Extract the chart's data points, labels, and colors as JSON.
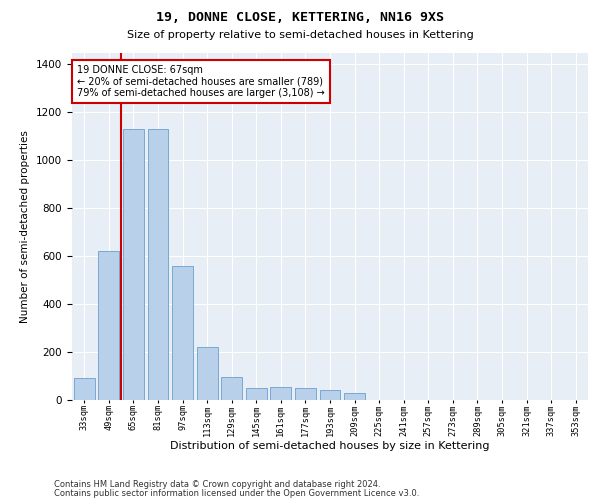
{
  "title1": "19, DONNE CLOSE, KETTERING, NN16 9XS",
  "title2": "Size of property relative to semi-detached houses in Kettering",
  "xlabel": "Distribution of semi-detached houses by size in Kettering",
  "ylabel": "Number of semi-detached properties",
  "property_label": "19 DONNE CLOSE: 67sqm",
  "pct_smaller": 20,
  "count_smaller": 789,
  "pct_larger": 79,
  "count_larger": 3108,
  "bin_labels": [
    "33sqm",
    "49sqm",
    "65sqm",
    "81sqm",
    "97sqm",
    "113sqm",
    "129sqm",
    "145sqm",
    "161sqm",
    "177sqm",
    "193sqm",
    "209sqm",
    "225sqm",
    "241sqm",
    "257sqm",
    "273sqm",
    "289sqm",
    "305sqm",
    "321sqm",
    "337sqm",
    "353sqm"
  ],
  "bar_heights": [
    90,
    620,
    1130,
    1130,
    560,
    220,
    95,
    50,
    55,
    50,
    40,
    30,
    0,
    0,
    0,
    0,
    0,
    0,
    0,
    0,
    0
  ],
  "bar_color": "#b8d0ea",
  "bar_edge_color": "#6aa0cc",
  "highlight_color": "#cc0000",
  "background_color": "#e8eef5",
  "ylim_max": 1450,
  "yticks": [
    0,
    200,
    400,
    600,
    800,
    1000,
    1200,
    1400
  ],
  "red_line_x": 1.5,
  "footer1": "Contains HM Land Registry data © Crown copyright and database right 2024.",
  "footer2": "Contains public sector information licensed under the Open Government Licence v3.0."
}
